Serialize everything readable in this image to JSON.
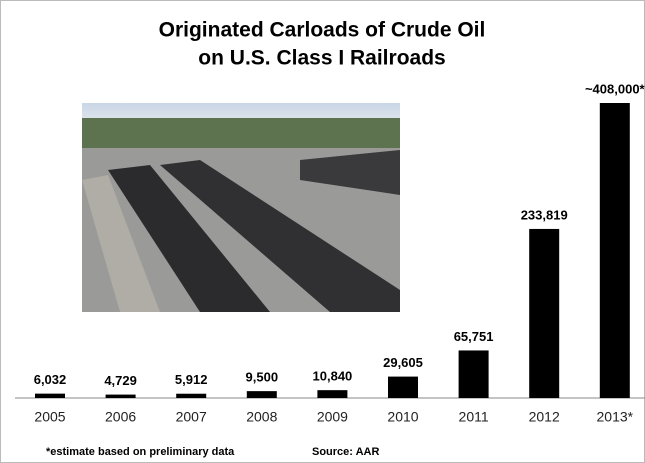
{
  "chart_data": {
    "type": "bar",
    "title": [
      "Originated Carloads of Crude Oil",
      "on U.S. Class I Railroads"
    ],
    "categories": [
      "2005",
      "2006",
      "2007",
      "2008",
      "2009",
      "2010",
      "2011",
      "2012",
      "2013*"
    ],
    "values": [
      6032,
      4729,
      5912,
      9500,
      10840,
      29605,
      65751,
      233819,
      408000
    ],
    "value_labels": [
      "6,032",
      "4,729",
      "5,912",
      "9,500",
      "10,840",
      "29,605",
      "65,751",
      "233,819",
      "~408,000*"
    ],
    "color": "#000000",
    "footnote": "*estimate based on preliminary data",
    "source": "Source:  AAR"
  }
}
